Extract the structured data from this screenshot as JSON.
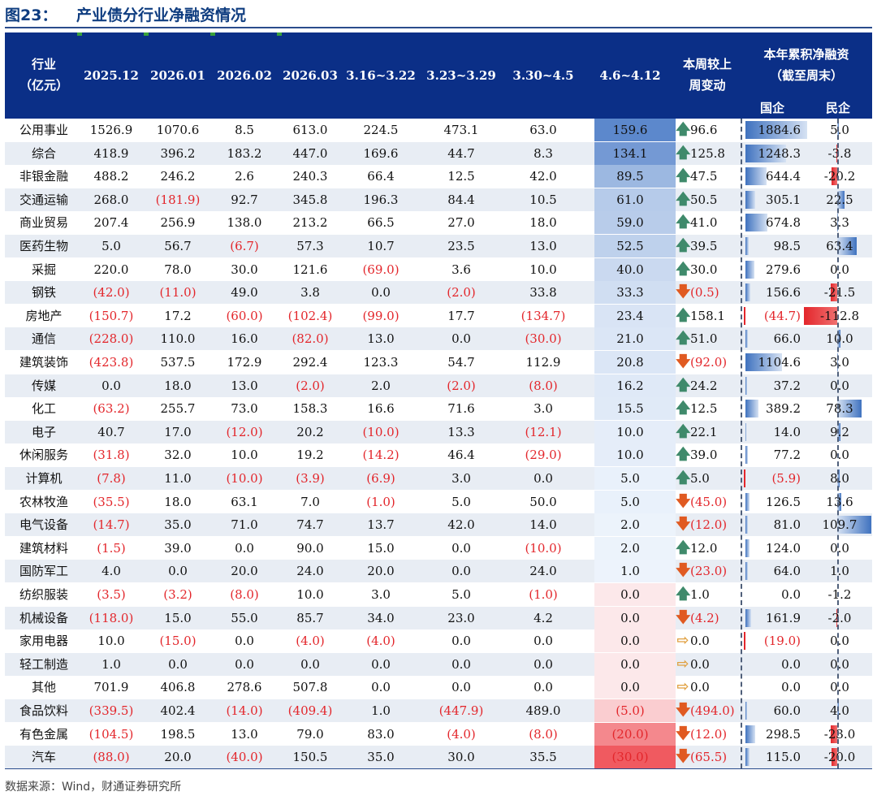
{
  "title": {
    "fig": "图23：",
    "text": "产业债分行业净融资情况"
  },
  "header": {
    "industry": [
      "行业",
      "（亿元）"
    ],
    "cols": [
      "2025.12",
      "2026.01",
      "2026.02",
      "2026.03",
      "3.16~3.22",
      "3.23~3.29",
      "3.30~4.5",
      "4.6~4.12"
    ],
    "weekchange": [
      "本周较上",
      "周变动"
    ],
    "cumulative": [
      "本年累积净融资",
      "（截至周末）"
    ],
    "soe": "国企",
    "private": "民企"
  },
  "rows": [
    {
      "name": "公用事业",
      "v": [
        "1526.9",
        "1070.6",
        "8.5",
        "613.0",
        "224.5",
        "473.1",
        "63.0",
        "159.6"
      ],
      "wk": 159.6,
      "dir": "up",
      "chg": "96.6",
      "soe": "1884.6",
      "soe_v": 1884.6,
      "pri": "5.0",
      "pri_v": 5.0
    },
    {
      "name": "综合",
      "v": [
        "418.9",
        "396.2",
        "183.2",
        "447.0",
        "169.6",
        "44.7",
        "8.3",
        "134.1"
      ],
      "wk": 134.1,
      "dir": "up",
      "chg": "125.8",
      "soe": "1248.3",
      "soe_v": 1248.3,
      "pri": "-3.8",
      "pri_v": -3.8
    },
    {
      "name": "非银金融",
      "v": [
        "488.2",
        "246.2",
        "2.6",
        "240.3",
        "66.4",
        "12.5",
        "42.0",
        "89.5"
      ],
      "wk": 89.5,
      "dir": "up",
      "chg": "47.5",
      "soe": "644.4",
      "soe_v": 644.4,
      "pri": "-20.2",
      "pri_v": -20.2
    },
    {
      "name": "交通运输",
      "v": [
        "268.0",
        "(181.9)",
        "92.7",
        "345.8",
        "196.3",
        "84.4",
        "10.5",
        "61.0"
      ],
      "wk": 61.0,
      "dir": "up",
      "chg": "50.5",
      "soe": "305.1",
      "soe_v": 305.1,
      "pri": "22.5",
      "pri_v": 22.5
    },
    {
      "name": "商业贸易",
      "v": [
        "207.4",
        "256.9",
        "138.0",
        "213.2",
        "66.5",
        "27.0",
        "18.0",
        "59.0"
      ],
      "wk": 59.0,
      "dir": "up",
      "chg": "41.0",
      "soe": "674.8",
      "soe_v": 674.8,
      "pri": "3.3",
      "pri_v": 3.3
    },
    {
      "name": "医药生物",
      "v": [
        "5.0",
        "56.7",
        "(6.7)",
        "57.3",
        "10.7",
        "23.5",
        "13.0",
        "52.5"
      ],
      "wk": 52.5,
      "dir": "up",
      "chg": "39.5",
      "soe": "98.5",
      "soe_v": 98.5,
      "pri": "63.4",
      "pri_v": 63.4
    },
    {
      "name": "采掘",
      "v": [
        "220.0",
        "78.0",
        "30.0",
        "121.6",
        "(69.0)",
        "3.6",
        "10.0",
        "40.0"
      ],
      "wk": 40.0,
      "dir": "up",
      "chg": "30.0",
      "soe": "279.6",
      "soe_v": 279.6,
      "pri": "0.0",
      "pri_v": 0.0
    },
    {
      "name": "钢铁",
      "v": [
        "(42.0)",
        "(11.0)",
        "49.0",
        "3.8",
        "0.0",
        "(2.0)",
        "33.8",
        "33.3"
      ],
      "wk": 33.3,
      "dir": "down",
      "chg": "(0.5)",
      "soe": "156.6",
      "soe_v": 156.6,
      "pri": "-21.5",
      "pri_v": -21.5
    },
    {
      "name": "房地产",
      "v": [
        "(150.7)",
        "17.2",
        "(60.0)",
        "(102.4)",
        "(99.0)",
        "17.7",
        "(134.7)",
        "23.4"
      ],
      "wk": 23.4,
      "dir": "up",
      "chg": "158.1",
      "soe": "(44.7)",
      "soe_v": -44.7,
      "pri": "-112.8",
      "pri_v": -112.8
    },
    {
      "name": "通信",
      "v": [
        "(228.0)",
        "110.0",
        "16.0",
        "(82.0)",
        "13.0",
        "0.0",
        "(30.0)",
        "21.0"
      ],
      "wk": 21.0,
      "dir": "up",
      "chg": "51.0",
      "soe": "66.0",
      "soe_v": 66.0,
      "pri": "10.0",
      "pri_v": 10.0
    },
    {
      "name": "建筑装饰",
      "v": [
        "(423.8)",
        "537.5",
        "172.9",
        "292.4",
        "123.3",
        "54.7",
        "112.9",
        "20.8"
      ],
      "wk": 20.8,
      "dir": "down",
      "chg": "(92.0)",
      "soe": "1104.6",
      "soe_v": 1104.6,
      "pri": "3.0",
      "pri_v": 3.0
    },
    {
      "name": "传媒",
      "v": [
        "0.0",
        "18.0",
        "13.0",
        "(2.0)",
        "2.0",
        "(2.0)",
        "(8.0)",
        "16.2"
      ],
      "wk": 16.2,
      "dir": "up",
      "chg": "24.2",
      "soe": "37.2",
      "soe_v": 37.2,
      "pri": "0.0",
      "pri_v": 0.0
    },
    {
      "name": "化工",
      "v": [
        "(63.2)",
        "255.7",
        "73.0",
        "158.3",
        "16.6",
        "71.6",
        "3.0",
        "15.5"
      ],
      "wk": 15.5,
      "dir": "up",
      "chg": "12.5",
      "soe": "389.2",
      "soe_v": 389.2,
      "pri": "78.3",
      "pri_v": 78.3
    },
    {
      "name": "电子",
      "v": [
        "40.7",
        "17.0",
        "(12.0)",
        "20.2",
        "(10.0)",
        "13.3",
        "(12.1)",
        "10.0"
      ],
      "wk": 10.0,
      "dir": "up",
      "chg": "22.1",
      "soe": "14.0",
      "soe_v": 14.0,
      "pri": "9.2",
      "pri_v": 9.2
    },
    {
      "name": "休闲服务",
      "v": [
        "(31.8)",
        "32.0",
        "10.0",
        "19.2",
        "(14.2)",
        "46.4",
        "(29.0)",
        "10.0"
      ],
      "wk": 10.0,
      "dir": "up",
      "chg": "39.0",
      "soe": "77.2",
      "soe_v": 77.2,
      "pri": "0.0",
      "pri_v": 0.0
    },
    {
      "name": "计算机",
      "v": [
        "(7.8)",
        "11.0",
        "(10.0)",
        "(3.9)",
        "(6.9)",
        "3.0",
        "0.0",
        "5.0"
      ],
      "wk": 5.0,
      "dir": "up",
      "chg": "5.0",
      "soe": "(5.9)",
      "soe_v": -5.9,
      "pri": "8.0",
      "pri_v": 8.0
    },
    {
      "name": "农林牧渔",
      "v": [
        "(35.5)",
        "18.0",
        "63.1",
        "7.0",
        "(1.0)",
        "5.0",
        "50.0",
        "5.0"
      ],
      "wk": 5.0,
      "dir": "down",
      "chg": "(45.0)",
      "soe": "126.5",
      "soe_v": 126.5,
      "pri": "13.6",
      "pri_v": 13.6
    },
    {
      "name": "电气设备",
      "v": [
        "(14.7)",
        "35.0",
        "71.0",
        "74.7",
        "13.7",
        "42.0",
        "14.0",
        "2.0"
      ],
      "wk": 2.0,
      "dir": "down",
      "chg": "(12.0)",
      "soe": "81.0",
      "soe_v": 81.0,
      "pri": "109.7",
      "pri_v": 109.7
    },
    {
      "name": "建筑材料",
      "v": [
        "(1.5)",
        "39.0",
        "0.0",
        "90.0",
        "15.0",
        "0.0",
        "(10.0)",
        "2.0"
      ],
      "wk": 2.0,
      "dir": "up",
      "chg": "12.0",
      "soe": "124.0",
      "soe_v": 124.0,
      "pri": "0.0",
      "pri_v": 0.0
    },
    {
      "name": "国防军工",
      "v": [
        "4.0",
        "0.0",
        "20.0",
        "24.0",
        "20.0",
        "0.0",
        "24.0",
        "1.0"
      ],
      "wk": 1.0,
      "dir": "down",
      "chg": "(23.0)",
      "soe": "64.0",
      "soe_v": 64.0,
      "pri": "1.0",
      "pri_v": 1.0
    },
    {
      "name": "纺织服装",
      "v": [
        "(3.5)",
        "(3.2)",
        "(8.0)",
        "10.0",
        "3.0",
        "5.0",
        "(1.0)",
        "0.0"
      ],
      "wk": 0.0,
      "dir": "up",
      "chg": "1.0",
      "soe": "0.0",
      "soe_v": 0.0,
      "pri": "-1.2",
      "pri_v": -1.2
    },
    {
      "name": "机械设备",
      "v": [
        "(118.0)",
        "15.0",
        "55.0",
        "85.7",
        "34.0",
        "23.0",
        "4.2",
        "0.0"
      ],
      "wk": 0.0,
      "dir": "down",
      "chg": "(4.2)",
      "soe": "161.9",
      "soe_v": 161.9,
      "pri": "-2.0",
      "pri_v": -2.0
    },
    {
      "name": "家用电器",
      "v": [
        "10.0",
        "(15.0)",
        "0.0",
        "(4.0)",
        "(4.0)",
        "0.0",
        "0.0",
        "0.0"
      ],
      "wk": 0.0,
      "dir": "flat",
      "chg": "0.0",
      "soe": "(19.0)",
      "soe_v": -19.0,
      "pri": "0.0",
      "pri_v": 0.0
    },
    {
      "name": "轻工制造",
      "v": [
        "1.0",
        "0.0",
        "0.0",
        "0.0",
        "0.0",
        "0.0",
        "0.0",
        "0.0"
      ],
      "wk": 0.0,
      "dir": "flat",
      "chg": "0.0",
      "soe": "0.0",
      "soe_v": 0.0,
      "pri": "0.0",
      "pri_v": 0.0
    },
    {
      "name": "其他",
      "v": [
        "701.9",
        "406.8",
        "278.6",
        "507.8",
        "0.0",
        "0.0",
        "0.0",
        "0.0"
      ],
      "wk": 0.0,
      "dir": "flat",
      "chg": "0.0",
      "soe": "0.0",
      "soe_v": 0.0,
      "pri": "0.0",
      "pri_v": 0.0
    },
    {
      "name": "食品饮料",
      "v": [
        "(339.5)",
        "402.4",
        "(14.0)",
        "(409.4)",
        "1.0",
        "(447.9)",
        "489.0",
        "(5.0)"
      ],
      "wk": -5.0,
      "dir": "down",
      "chg": "(494.0)",
      "soe": "60.0",
      "soe_v": 60.0,
      "pri": "4.0",
      "pri_v": 4.0
    },
    {
      "name": "有色金属",
      "v": [
        "(104.5)",
        "198.5",
        "13.0",
        "79.0",
        "83.0",
        "(4.0)",
        "(8.0)",
        "(20.0)"
      ],
      "wk": -20.0,
      "dir": "down",
      "chg": "(12.0)",
      "soe": "298.5",
      "soe_v": 298.5,
      "pri": "-23.0",
      "pri_v": -23.0
    },
    {
      "name": "汽车",
      "v": [
        "(88.0)",
        "20.0",
        "(40.0)",
        "150.5",
        "35.0",
        "30.0",
        "35.5",
        "(30.0)"
      ],
      "wk": -30.0,
      "dir": "down",
      "chg": "(65.5)",
      "soe": "115.0",
      "soe_v": 115.0,
      "pri": "-20.0",
      "pri_v": -20.0
    }
  ],
  "source": "数据来源：Wind，财通证券研究所",
  "colors": {
    "header_bg": "#0b2f87",
    "pos": "#4f7fc4",
    "neg": "#e3262b",
    "up_arrow": "#3f8a6b",
    "down_arrow": "#e05a21",
    "flat_arrow": "#e0a040"
  }
}
